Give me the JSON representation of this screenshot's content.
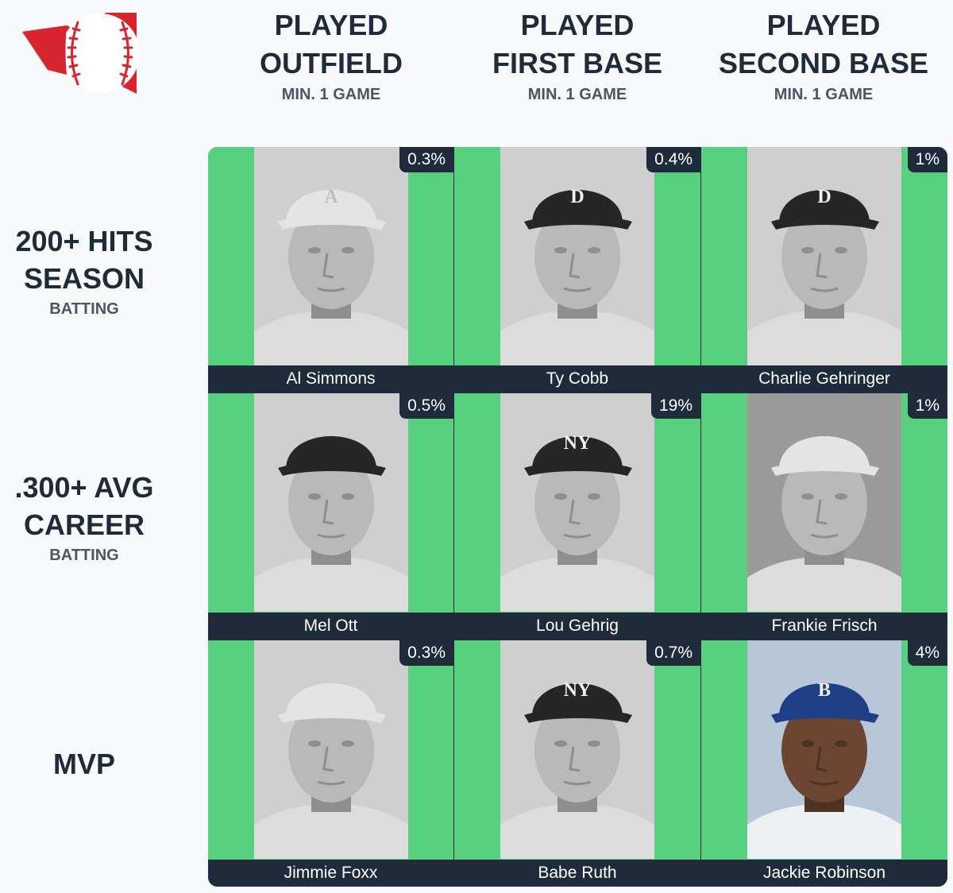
{
  "columns": [
    {
      "title_line1": "PLAYED",
      "title_line2": "OUTFIELD",
      "subtitle": "MIN. 1 GAME"
    },
    {
      "title_line1": "PLAYED",
      "title_line2": "FIRST BASE",
      "subtitle": "MIN. 1 GAME"
    },
    {
      "title_line1": "PLAYED",
      "title_line2": "SECOND BASE",
      "subtitle": "MIN. 1 GAME"
    }
  ],
  "rows": [
    {
      "title_line1": "200+ HITS",
      "title_line2": "SEASON",
      "subtitle": "BATTING"
    },
    {
      "title_line1": ".300+ AVG",
      "title_line2": "CAREER",
      "subtitle": "BATTING"
    },
    {
      "title_line1": "MVP",
      "title_line2": "",
      "subtitle": ""
    }
  ],
  "cells": [
    [
      {
        "player": "Al Simmons",
        "rarity": "0.3%",
        "cap": "light",
        "cap_letter": "A"
      },
      {
        "player": "Ty Cobb",
        "rarity": "0.4%",
        "cap": "dark",
        "cap_letter": "D"
      },
      {
        "player": "Charlie Gehringer",
        "rarity": "1%",
        "cap": "dark",
        "cap_letter": "D"
      }
    ],
    [
      {
        "player": "Mel Ott",
        "rarity": "0.5%",
        "cap": "dark",
        "cap_letter": ""
      },
      {
        "player": "Lou Gehrig",
        "rarity": "19%",
        "cap": "dark",
        "cap_letter": "NY"
      },
      {
        "player": "Frankie Frisch",
        "rarity": "1%",
        "cap": "light",
        "cap_letter": ""
      }
    ],
    [
      {
        "player": "Jimmie Foxx",
        "rarity": "0.3%",
        "cap": "light",
        "cap_letter": ""
      },
      {
        "player": "Babe Ruth",
        "rarity": "0.7%",
        "cap": "dark",
        "cap_letter": "NY"
      },
      {
        "player": "Jackie Robinson",
        "rarity": "4%",
        "cap": "blue",
        "cap_letter": "B"
      }
    ]
  ],
  "colors": {
    "correct_cell": "#57d07f",
    "label_bg": "#1f2a3a",
    "brand_red": "#d7242f"
  },
  "icons": {
    "logo": "baseball-logo-icon"
  }
}
